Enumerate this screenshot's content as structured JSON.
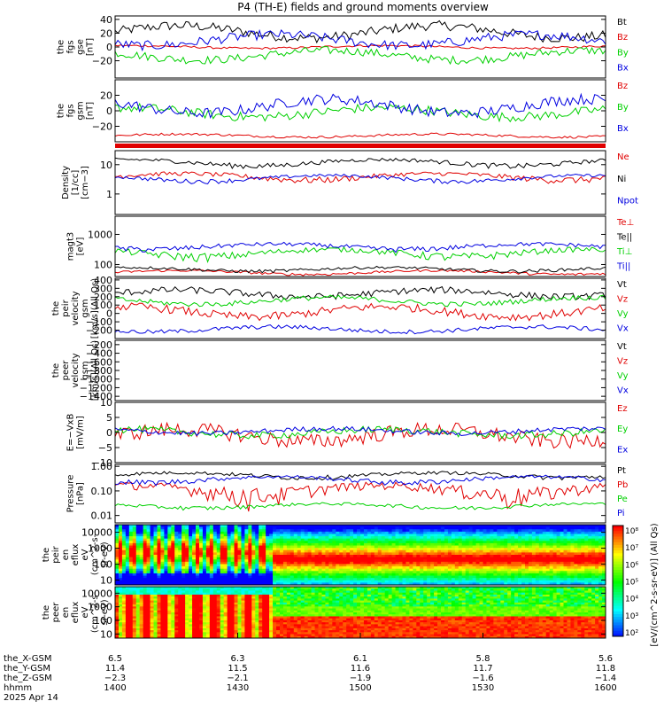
{
  "title": "P4 (TH-E) fields and ground moments overview",
  "colors": {
    "black": "#000000",
    "red": "#e00000",
    "green": "#00d000",
    "blue": "#0000e0"
  },
  "chart_data": [
    {
      "type": "line",
      "panel": "fgs-gse",
      "ylabel": [
        "the",
        "fgs",
        "gse",
        "[nT]"
      ],
      "ylim": [
        -45,
        45
      ],
      "ticks": [
        {
          "v": 40,
          "label": "40"
        },
        {
          "v": 20,
          "label": "20"
        },
        {
          "v": 0,
          "label": "0"
        },
        {
          "v": -20,
          "label": "−20"
        }
      ],
      "series": [
        {
          "name": "Bt",
          "color": "black",
          "base": 22,
          "amp": 9,
          "noise": 7
        },
        {
          "name": "Bz",
          "color": "red",
          "base": 0,
          "amp": 2,
          "noise": 1.5
        },
        {
          "name": "By",
          "color": "green",
          "base": -12,
          "amp": 7,
          "noise": 6
        },
        {
          "name": "Bx",
          "color": "blue",
          "base": 10,
          "amp": 8,
          "noise": 7
        }
      ]
    },
    {
      "type": "line",
      "panel": "fgs-gsm",
      "ylabel": [
        "the",
        "fgs",
        "gsm",
        "[nT]"
      ],
      "ylim": [
        -40,
        40
      ],
      "ticks": [
        {
          "v": 20,
          "label": "20"
        },
        {
          "v": 0,
          "label": "0"
        },
        {
          "v": -20,
          "label": "−20"
        }
      ],
      "series": [
        {
          "name": "Bz",
          "color": "red",
          "base": -32,
          "amp": 2,
          "noise": 1.5
        },
        {
          "name": "By",
          "color": "green",
          "base": -2,
          "amp": 6,
          "noise": 6
        },
        {
          "name": "Bx",
          "color": "blue",
          "base": 6,
          "amp": 9,
          "noise": 7
        }
      ]
    },
    {
      "type": "line",
      "panel": "density",
      "ylabel": [
        "Density",
        "[1/cc]",
        "[cm−3]"
      ],
      "ylim": [
        0.2,
        30
      ],
      "log": true,
      "ticks": [
        {
          "v": 10,
          "label": "10"
        },
        {
          "v": 1,
          "label": "1"
        }
      ],
      "series": [
        {
          "name": "Ne",
          "color": "red",
          "base": 4,
          "amp": 1,
          "noise": 0.8
        },
        {
          "name": "Ni",
          "color": "black",
          "base": 12,
          "amp": 3,
          "noise": 2
        },
        {
          "name": "Npot",
          "color": "blue",
          "base": 3.5,
          "amp": 0.8,
          "noise": 0.5
        }
      ]
    },
    {
      "type": "line",
      "panel": "temperature",
      "ylabel": [
        "magt3",
        "[eV]"
      ],
      "ylim": [
        40,
        4000
      ],
      "log": true,
      "ticks": [
        {
          "v": 1000,
          "label": "1000"
        },
        {
          "v": 100,
          "label": "100"
        }
      ],
      "series": [
        {
          "name": "Te⊥",
          "color": "red",
          "base": 55,
          "amp": 8,
          "noise": 5
        },
        {
          "name": "Te||",
          "color": "black",
          "base": 70,
          "amp": 10,
          "noise": 8
        },
        {
          "name": "Ti⊥",
          "color": "green",
          "base": 250,
          "amp": 70,
          "noise": 60
        },
        {
          "name": "Ti||",
          "color": "blue",
          "base": 400,
          "amp": 80,
          "noise": 70
        }
      ]
    },
    {
      "type": "line",
      "panel": "peir-velocity",
      "ylabel": [
        "the",
        "peir",
        "velocity",
        "gsm",
        "[km/s](All Qs)"
      ],
      "ylim": [
        -300,
        420
      ],
      "ticks": [
        {
          "v": 400,
          "label": "400"
        },
        {
          "v": 300,
          "label": "300"
        },
        {
          "v": 200,
          "label": "200"
        },
        {
          "v": 100,
          "label": "100"
        },
        {
          "v": 0,
          "label": "0"
        },
        {
          "v": -100,
          "label": "−100"
        },
        {
          "v": -200,
          "label": "−200"
        }
      ],
      "series": [
        {
          "name": "Vt",
          "color": "black",
          "base": 240,
          "amp": 40,
          "noise": 40
        },
        {
          "name": "Vz",
          "color": "red",
          "base": 20,
          "amp": 60,
          "noise": 50
        },
        {
          "name": "Vy",
          "color": "green",
          "base": 150,
          "amp": 40,
          "noise": 30
        },
        {
          "name": "Vx",
          "color": "blue",
          "base": -190,
          "amp": 30,
          "noise": 25
        }
      ]
    },
    {
      "type": "line",
      "panel": "peer-velocity",
      "ylabel": [
        "the",
        "peer",
        "velocity",
        "gsm",
        "[km/s](All Qs)"
      ],
      "ylim": [
        -1500,
        -100
      ],
      "ticks": [
        {
          "v": -200,
          "label": "−200"
        },
        {
          "v": -400,
          "label": "−400"
        },
        {
          "v": -600,
          "label": "−600"
        },
        {
          "v": -800,
          "label": "−800"
        },
        {
          "v": -1000,
          "label": "−1000"
        },
        {
          "v": -1200,
          "label": "−1200"
        },
        {
          "v": -1400,
          "label": "−1400"
        }
      ],
      "series": [
        {
          "name": "Vt",
          "color": "black"
        },
        {
          "name": "Vz",
          "color": "red"
        },
        {
          "name": "Vy",
          "color": "green"
        },
        {
          "name": "Vx",
          "color": "blue"
        }
      ]
    },
    {
      "type": "line",
      "panel": "efield",
      "ylabel": [
        "E=−VxB",
        "[mV/m]"
      ],
      "ylim": [
        -10,
        10
      ],
      "ticks": [
        {
          "v": 10,
          "label": "10"
        },
        {
          "v": 5,
          "label": "5"
        },
        {
          "v": 0,
          "label": "0"
        },
        {
          "v": -5,
          "label": "−5"
        },
        {
          "v": -10,
          "label": "−10"
        }
      ],
      "series": [
        {
          "name": "Ez",
          "color": "red",
          "base": -1,
          "amp": 2,
          "noise": 2.5
        },
        {
          "name": "Ey",
          "color": "green",
          "base": 0,
          "amp": 1,
          "noise": 1.2
        },
        {
          "name": "Ex",
          "color": "blue",
          "base": 0.5,
          "amp": 0.8,
          "noise": 0.8
        }
      ]
    },
    {
      "type": "line",
      "panel": "pressure",
      "ylabel": [
        "Pressure",
        "[nPa]"
      ],
      "ylim": [
        0.005,
        1.2
      ],
      "log": true,
      "ticks": [
        {
          "v": 1,
          "label": "1.00"
        },
        {
          "v": 0.1,
          "label": "0.10"
        },
        {
          "v": 0.01,
          "label": "0.01"
        }
      ],
      "series": [
        {
          "name": "Pt",
          "color": "black",
          "base": 0.45,
          "amp": 0.1,
          "noise": 0.08
        },
        {
          "name": "Pb",
          "color": "red",
          "base": 0.12,
          "amp": 0.05,
          "noise": 0.06
        },
        {
          "name": "Pe",
          "color": "green",
          "base": 0.025,
          "amp": 0.005,
          "noise": 0.004
        },
        {
          "name": "Pi",
          "color": "blue",
          "base": 0.3,
          "amp": 0.08,
          "noise": 0.06
        }
      ]
    },
    {
      "type": "heatmap",
      "panel": "peir-eflux",
      "ylabel": [
        "the",
        "peir",
        "en",
        "eflux",
        "eV",
        "(cm^2-s-",
        "sr-eV)"
      ],
      "ylim": [
        5,
        30000
      ],
      "log": true,
      "ticks": [
        {
          "v": 10000,
          "label": "10000"
        },
        {
          "v": 1000,
          "label": "1000"
        },
        {
          "v": 100,
          "label": "100"
        },
        {
          "v": 10,
          "label": "10"
        }
      ]
    },
    {
      "type": "heatmap",
      "panel": "peer-eflux",
      "ylabel": [
        "the",
        "peer",
        "en",
        "eflux",
        "eV",
        "(cm^2-s-",
        "sr-eV)"
      ],
      "ylim": [
        5,
        30000
      ],
      "log": true,
      "ticks": [
        {
          "v": 10000,
          "label": "10000"
        },
        {
          "v": 1000,
          "label": "1000"
        },
        {
          "v": 100,
          "label": "100"
        },
        {
          "v": 10,
          "label": "10"
        }
      ]
    }
  ],
  "colorbar": {
    "ticks": [
      "10⁸",
      "10⁷",
      "10⁶",
      "10⁵",
      "10⁴",
      "10³",
      "10²"
    ],
    "label": "[eV/(cm^2-s-sr-eV)] (All Qs)"
  },
  "xaxis": {
    "rows": [
      {
        "label": "the_X-GSM",
        "values": [
          "6.5",
          "6.3",
          "6.1",
          "5.8",
          "5.6"
        ]
      },
      {
        "label": "the_Y-GSM",
        "values": [
          "11.4",
          "11.5",
          "11.6",
          "11.7",
          "11.8"
        ]
      },
      {
        "label": "the_Z-GSM",
        "values": [
          "−2.3",
          "−2.1",
          "−1.9",
          "−1.6",
          "−1.4"
        ]
      },
      {
        "label": "hhmm",
        "values": [
          "1400",
          "1430",
          "1500",
          "1530",
          "1600"
        ]
      }
    ],
    "date": "2025 Apr 14"
  }
}
